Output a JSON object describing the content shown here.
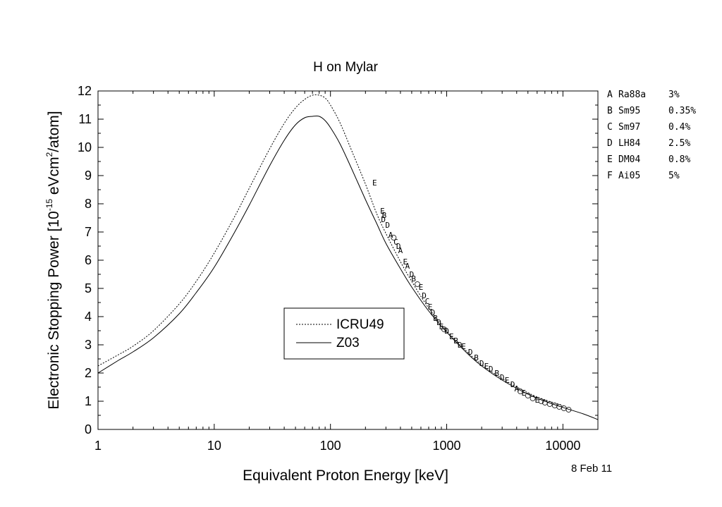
{
  "chart_data": {
    "type": "line",
    "title": "H on Mylar",
    "xlabel": "Equivalent Proton Energy [keV]",
    "ylabel": {
      "prefix": "Electronic Stopping Power [10",
      "exp1": "-15",
      "mid": " eVcm",
      "exp2": "2",
      "suffix": "/atom]"
    },
    "xscale": "log",
    "xlim": [
      1,
      20000
    ],
    "ylim": [
      0,
      12
    ],
    "xticks": [
      {
        "value": 1,
        "label": "1"
      },
      {
        "value": 10,
        "label": "10"
      },
      {
        "value": 100,
        "label": "100"
      },
      {
        "value": 1000,
        "label": "1000"
      },
      {
        "value": 10000,
        "label": "10000"
      }
    ],
    "yticks": [
      {
        "value": 0,
        "label": "0"
      },
      {
        "value": 1,
        "label": "1"
      },
      {
        "value": 2,
        "label": "2"
      },
      {
        "value": 3,
        "label": "3"
      },
      {
        "value": 4,
        "label": "4"
      },
      {
        "value": 5,
        "label": "5"
      },
      {
        "value": 6,
        "label": "6"
      },
      {
        "value": 7,
        "label": "7"
      },
      {
        "value": 8,
        "label": "8"
      },
      {
        "value": 9,
        "label": "9"
      },
      {
        "value": 10,
        "label": "10"
      },
      {
        "value": 11,
        "label": "11"
      },
      {
        "value": 12,
        "label": "12"
      }
    ],
    "series": [
      {
        "name": "ICRU49",
        "style": "dotted",
        "x": [
          1,
          1.5,
          2,
          3,
          5,
          7,
          10,
          15,
          20,
          30,
          40,
          50,
          60,
          70,
          80,
          90,
          100,
          120,
          150,
          200,
          250,
          300,
          400,
          500,
          700,
          1000,
          1500,
          2000,
          3000,
          5000,
          7000,
          10000
        ],
        "y": [
          2.25,
          2.65,
          2.95,
          3.5,
          4.45,
          5.25,
          6.25,
          7.55,
          8.55,
          9.95,
          10.85,
          11.4,
          11.7,
          11.85,
          11.85,
          11.75,
          11.5,
          10.9,
          9.95,
          8.7,
          7.65,
          6.95,
          5.95,
          5.25,
          4.3,
          3.5,
          2.75,
          2.3,
          1.8,
          1.3,
          1.05,
          0.85
        ]
      },
      {
        "name": "Z03",
        "style": "solid",
        "x": [
          1,
          1.5,
          2,
          3,
          5,
          7,
          10,
          15,
          20,
          30,
          40,
          50,
          60,
          70,
          80,
          90,
          100,
          120,
          150,
          200,
          250,
          300,
          400,
          500,
          700,
          1000,
          1500,
          2000,
          3000,
          5000,
          7000,
          10000,
          15000,
          20000
        ],
        "y": [
          2.0,
          2.45,
          2.75,
          3.25,
          4.1,
          4.85,
          5.75,
          7.0,
          7.95,
          9.35,
          10.25,
          10.8,
          11.05,
          11.1,
          11.1,
          10.95,
          10.7,
          10.15,
          9.3,
          8.15,
          7.3,
          6.6,
          5.7,
          5.05,
          4.2,
          3.45,
          2.7,
          2.25,
          1.75,
          1.25,
          1.0,
          0.78,
          0.55,
          0.35
        ]
      }
    ],
    "data_markers": [
      {
        "symbol": "E",
        "x": 240,
        "y": 8.75
      },
      {
        "symbol": "E",
        "x": 280,
        "y": 7.75
      },
      {
        "symbol": "D",
        "x": 285,
        "y": 7.45
      },
      {
        "symbol": "B",
        "x": 290,
        "y": 7.6
      },
      {
        "symbol": "D",
        "x": 310,
        "y": 7.25
      },
      {
        "symbol": "A",
        "x": 330,
        "y": 6.9
      },
      {
        "symbol": "O",
        "x": 350,
        "y": 6.8
      },
      {
        "symbol": "C",
        "x": 365,
        "y": 6.65
      },
      {
        "symbol": "D",
        "x": 385,
        "y": 6.5
      },
      {
        "symbol": "A",
        "x": 400,
        "y": 6.35
      },
      {
        "symbol": "E",
        "x": 440,
        "y": 5.95
      },
      {
        "symbol": "A",
        "x": 460,
        "y": 5.8
      },
      {
        "symbol": "D",
        "x": 500,
        "y": 5.5
      },
      {
        "symbol": "B",
        "x": 520,
        "y": 5.35
      },
      {
        "symbol": "O",
        "x": 560,
        "y": 5.15
      },
      {
        "symbol": "E",
        "x": 600,
        "y": 5.05
      },
      {
        "symbol": "D",
        "x": 640,
        "y": 4.75
      },
      {
        "symbol": "C",
        "x": 680,
        "y": 4.55
      },
      {
        "symbol": "E",
        "x": 720,
        "y": 4.35
      },
      {
        "symbol": "D",
        "x": 760,
        "y": 4.15
      },
      {
        "symbol": "B",
        "x": 800,
        "y": 3.95
      },
      {
        "symbol": "D",
        "x": 860,
        "y": 3.8
      },
      {
        "symbol": "E",
        "x": 900,
        "y": 3.65
      },
      {
        "symbol": "O",
        "x": 950,
        "y": 3.55
      },
      {
        "symbol": "D",
        "x": 1000,
        "y": 3.5
      },
      {
        "symbol": "E",
        "x": 1100,
        "y": 3.3
      },
      {
        "symbol": "B",
        "x": 1200,
        "y": 3.15
      },
      {
        "symbol": "D",
        "x": 1300,
        "y": 3.0
      },
      {
        "symbol": "E",
        "x": 1400,
        "y": 2.95
      },
      {
        "symbol": "D",
        "x": 1600,
        "y": 2.75
      },
      {
        "symbol": "B",
        "x": 1800,
        "y": 2.55
      },
      {
        "symbol": "D",
        "x": 2000,
        "y": 2.35
      },
      {
        "symbol": "E",
        "x": 2200,
        "y": 2.25
      },
      {
        "symbol": "D",
        "x": 2400,
        "y": 2.15
      },
      {
        "symbol": "B",
        "x": 2700,
        "y": 2.0
      },
      {
        "symbol": "D",
        "x": 3000,
        "y": 1.85
      },
      {
        "symbol": "E",
        "x": 3300,
        "y": 1.75
      },
      {
        "symbol": "D",
        "x": 3700,
        "y": 1.6
      },
      {
        "symbol": "A",
        "x": 4000,
        "y": 1.45
      },
      {
        "symbol": "O",
        "x": 4300,
        "y": 1.35
      },
      {
        "symbol": "E",
        "x": 4600,
        "y": 1.3
      },
      {
        "symbol": "O",
        "x": 5000,
        "y": 1.2
      },
      {
        "symbol": "O",
        "x": 5500,
        "y": 1.1
      },
      {
        "symbol": "E",
        "x": 6000,
        "y": 1.05
      },
      {
        "symbol": "O",
        "x": 6500,
        "y": 1.0
      },
      {
        "symbol": "O",
        "x": 7000,
        "y": 0.95
      },
      {
        "symbol": "O",
        "x": 7700,
        "y": 0.9
      },
      {
        "symbol": "O",
        "x": 8500,
        "y": 0.85
      },
      {
        "symbol": "O",
        "x": 9300,
        "y": 0.8
      },
      {
        "symbol": "O",
        "x": 10200,
        "y": 0.75
      },
      {
        "symbol": "O",
        "x": 11200,
        "y": 0.7
      }
    ],
    "legend": {
      "placement": "lower-center",
      "entries": [
        "ICRU49",
        "Z03"
      ]
    }
  },
  "references": [
    {
      "code": "A",
      "name": "Ra88a",
      "error": "3%"
    },
    {
      "code": "B",
      "name": "Sm95",
      "error": "0.35%"
    },
    {
      "code": "C",
      "name": "Sm97",
      "error": "0.4%"
    },
    {
      "code": "D",
      "name": "LH84",
      "error": "2.5%"
    },
    {
      "code": "E",
      "name": "DM04",
      "error": "0.8%"
    },
    {
      "code": "F",
      "name": "Ai05",
      "error": "5%"
    }
  ],
  "date_stamp": "8 Feb 11"
}
